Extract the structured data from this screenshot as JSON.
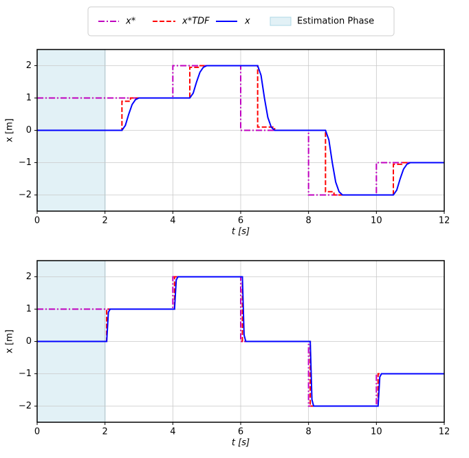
{
  "chart_data": [
    {
      "type": "line",
      "xlabel": "t [s]",
      "ylabel": "x [m]",
      "grid": true,
      "legend": "upper center",
      "xlim": [
        0,
        12
      ],
      "ylim": [
        -2.5,
        2.5
      ],
      "xticks": [
        0,
        2,
        4,
        6,
        8,
        10,
        12
      ],
      "yticks": [
        {
          "value": -2,
          "label": "−2"
        },
        {
          "value": -1,
          "label": "−1"
        },
        0,
        1,
        2
      ],
      "spans": [
        {
          "name": "Estimation Phase",
          "color": "#add8e6",
          "x": [
            0,
            2
          ]
        }
      ],
      "series": [
        {
          "name": "x*",
          "color": "#bf00bf",
          "dash": "dashdot",
          "x": [
            0,
            4,
            4,
            6,
            6,
            8,
            8,
            10,
            10,
            12
          ],
          "values": [
            1,
            1,
            2,
            2,
            0,
            0,
            -2,
            -2,
            -1,
            -1
          ]
        },
        {
          "name": "x*TDF",
          "color": "#ff0000",
          "dash": "dashed",
          "x": [
            0,
            2.5,
            2.5,
            2.75,
            2.75,
            4.5,
            4.5,
            4.75,
            4.75,
            6.5,
            6.5,
            7,
            7,
            8.5,
            8.5,
            8.75,
            8.75,
            10.5,
            10.5,
            10.75,
            10.75,
            12
          ],
          "values": [
            0,
            0,
            0.9,
            0.9,
            1,
            1,
            1.95,
            1.95,
            2,
            2,
            0.1,
            0.1,
            0,
            0,
            -1.9,
            -1.9,
            -2,
            -2,
            -1.05,
            -1.05,
            -1,
            -1
          ]
        },
        {
          "name": "x",
          "color": "#0000ff",
          "dash": "solid",
          "x": [
            0,
            2.5,
            2.6,
            2.7,
            2.8,
            2.9,
            3.0,
            4.5,
            4.6,
            4.7,
            4.8,
            4.9,
            5.0,
            6.5,
            6.6,
            6.7,
            6.8,
            6.9,
            7.0,
            8.5,
            8.6,
            8.7,
            8.8,
            8.9,
            9.0,
            10.5,
            10.6,
            10.7,
            10.8,
            10.9,
            11.0,
            12
          ],
          "values": [
            0,
            0,
            0.15,
            0.5,
            0.8,
            0.95,
            1,
            1,
            1.15,
            1.5,
            1.8,
            1.95,
            2,
            2,
            1.7,
            1,
            0.4,
            0.1,
            0,
            0,
            -0.3,
            -1,
            -1.6,
            -1.9,
            -2,
            -2,
            -1.85,
            -1.5,
            -1.2,
            -1.05,
            -1,
            -1
          ]
        }
      ]
    },
    {
      "type": "line",
      "xlabel": "t [s]",
      "ylabel": "x [m]",
      "grid": true,
      "xlim": [
        0,
        12
      ],
      "ylim": [
        -2.5,
        2.5
      ],
      "xticks": [
        0,
        2,
        4,
        6,
        8,
        10,
        12
      ],
      "yticks": [
        {
          "value": -2,
          "label": "−2"
        },
        {
          "value": -1,
          "label": "−1"
        },
        0,
        1,
        2
      ],
      "spans": [
        {
          "color": "#add8e6",
          "x": [
            0,
            2
          ]
        }
      ],
      "series": [
        {
          "color": "#bf00bf",
          "dash": "dashdot",
          "x": [
            0,
            4,
            4,
            6,
            6,
            8,
            8,
            10,
            10,
            12
          ],
          "values": [
            1,
            1,
            2,
            2,
            0,
            0,
            -2,
            -2,
            -1,
            -1
          ]
        },
        {
          "color": "#ff0000",
          "dash": "dashed",
          "x": [
            0,
            2.05,
            2.05,
            4.05,
            4.05,
            6.05,
            6.05,
            8.05,
            8.05,
            10.05,
            10.05,
            12
          ],
          "values": [
            0,
            0,
            1,
            1,
            2,
            2,
            0,
            0,
            -2,
            -2,
            -1,
            -1
          ]
        },
        {
          "color": "#0000ff",
          "dash": "solid",
          "x": [
            0,
            2.05,
            2.1,
            2.15,
            4.05,
            4.1,
            4.15,
            6.05,
            6.1,
            6.15,
            8.05,
            8.1,
            8.15,
            10.05,
            10.1,
            10.15,
            12
          ],
          "values": [
            0,
            0,
            0.9,
            1,
            1,
            1.9,
            2,
            2,
            0.2,
            0,
            0,
            -1.8,
            -2,
            -2,
            -1.1,
            -1,
            -1
          ]
        }
      ]
    }
  ]
}
